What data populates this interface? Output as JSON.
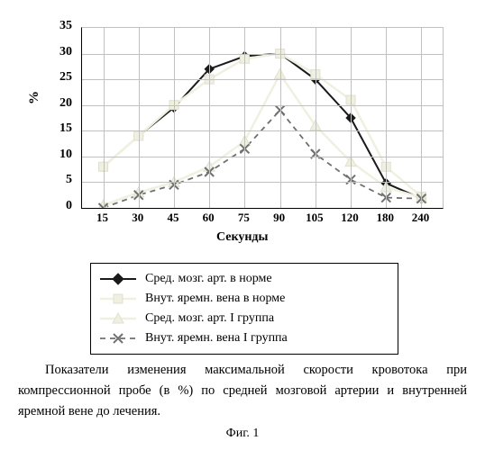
{
  "chart": {
    "type": "line",
    "xlabel": "Секунды",
    "ylabel": "%",
    "xlim": [
      15,
      240
    ],
    "ylim": [
      0,
      35
    ],
    "ytick_step": 5,
    "x_categories": [
      "15",
      "30",
      "45",
      "60",
      "75",
      "90",
      "105",
      "120",
      "180",
      "240"
    ],
    "title_fontsize": 14,
    "label_fontsize": 14,
    "tick_fontsize": 13,
    "background_color": "#ffffff",
    "grid_color": "#c0c0c0",
    "series": [
      {
        "key": "s1",
        "name": "Сред. мозг. арт. в норме",
        "marker": "diamond",
        "color": "#1a1a1a",
        "line_style": "solid",
        "line_width": 2,
        "values": [
          8,
          14,
          19.5,
          27,
          29.5,
          30,
          25,
          17.5,
          4.8,
          1.8
        ]
      },
      {
        "key": "s2",
        "name": "Внут. яремн. вена в норме",
        "marker": "square",
        "color": "#f0f0e0",
        "line_style": "solid",
        "line_width": 2.5,
        "values": [
          8,
          14,
          20,
          25,
          29,
          30,
          26,
          21,
          8,
          2.2
        ]
      },
      {
        "key": "s3",
        "name": "Сред. мозг. арт. I группа",
        "marker": "triangle",
        "color": "#f0f0e0",
        "line_style": "solid",
        "line_width": 2.5,
        "values": [
          0.5,
          3,
          5,
          8,
          13,
          26,
          16,
          9,
          4,
          2
        ]
      },
      {
        "key": "s4",
        "name": "Внут. яремн. вена I группа",
        "marker": "x",
        "color": "#707070",
        "line_style": "dash",
        "line_width": 1.8,
        "values": [
          0,
          2.5,
          4.5,
          7,
          11.5,
          19,
          10.5,
          5.5,
          2,
          1.8
        ]
      }
    ],
    "legend": [
      "Сред. мозг. арт. в норме",
      "Внут. яремн. вена в норме",
      "Сред. мозг. арт. I группа",
      "Внут. яремн. вена I группа"
    ]
  },
  "caption": "Показатели изменения максимальной скорости кровотока при компрессионной пробе (в %) по средней мозговой артерии и внутренней яремной вене до лечения.",
  "figure_label": "Фиг. 1"
}
